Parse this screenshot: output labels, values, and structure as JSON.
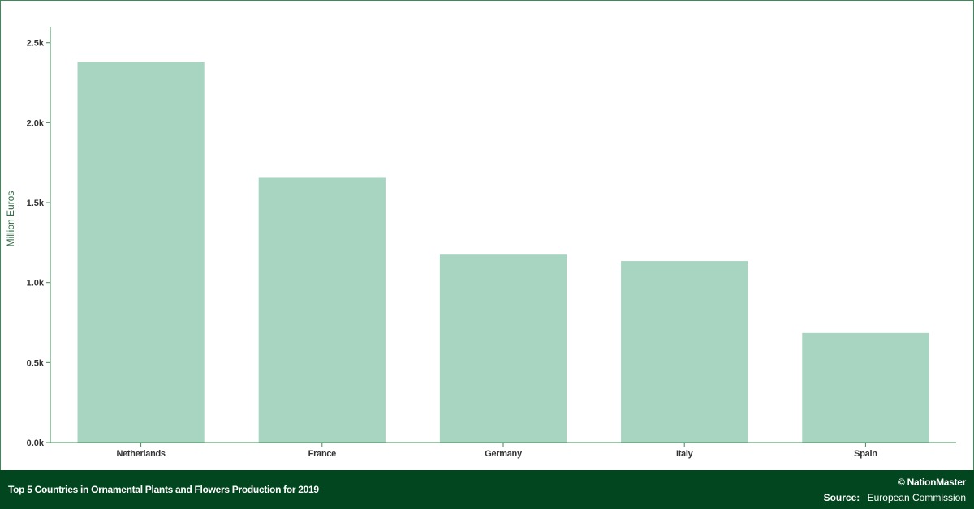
{
  "chart_data": {
    "type": "bar",
    "categories": [
      "Netherlands",
      "France",
      "Germany",
      "Italy",
      "Spain"
    ],
    "values": [
      2380,
      1660,
      1175,
      1135,
      685
    ],
    "ylabel": "Million Euros",
    "xlabel": "",
    "ylim": [
      0,
      2600
    ],
    "yticks": [
      0,
      500,
      1000,
      1500,
      2000,
      2500
    ],
    "ytick_labels": [
      "0.0k",
      "0.5k",
      "1.0k",
      "1.5k",
      "2.0k",
      "2.5k"
    ],
    "grid": false,
    "bar_color": "#a8d5c1",
    "axis_color": "#3d8a55"
  },
  "footer": {
    "title": "Top 5 Countries in Ornamental Plants and Flowers Production for 2019",
    "brand": "© NationMaster",
    "source_label": "Source:",
    "source_value": "European Commission",
    "background": "#02461f"
  }
}
